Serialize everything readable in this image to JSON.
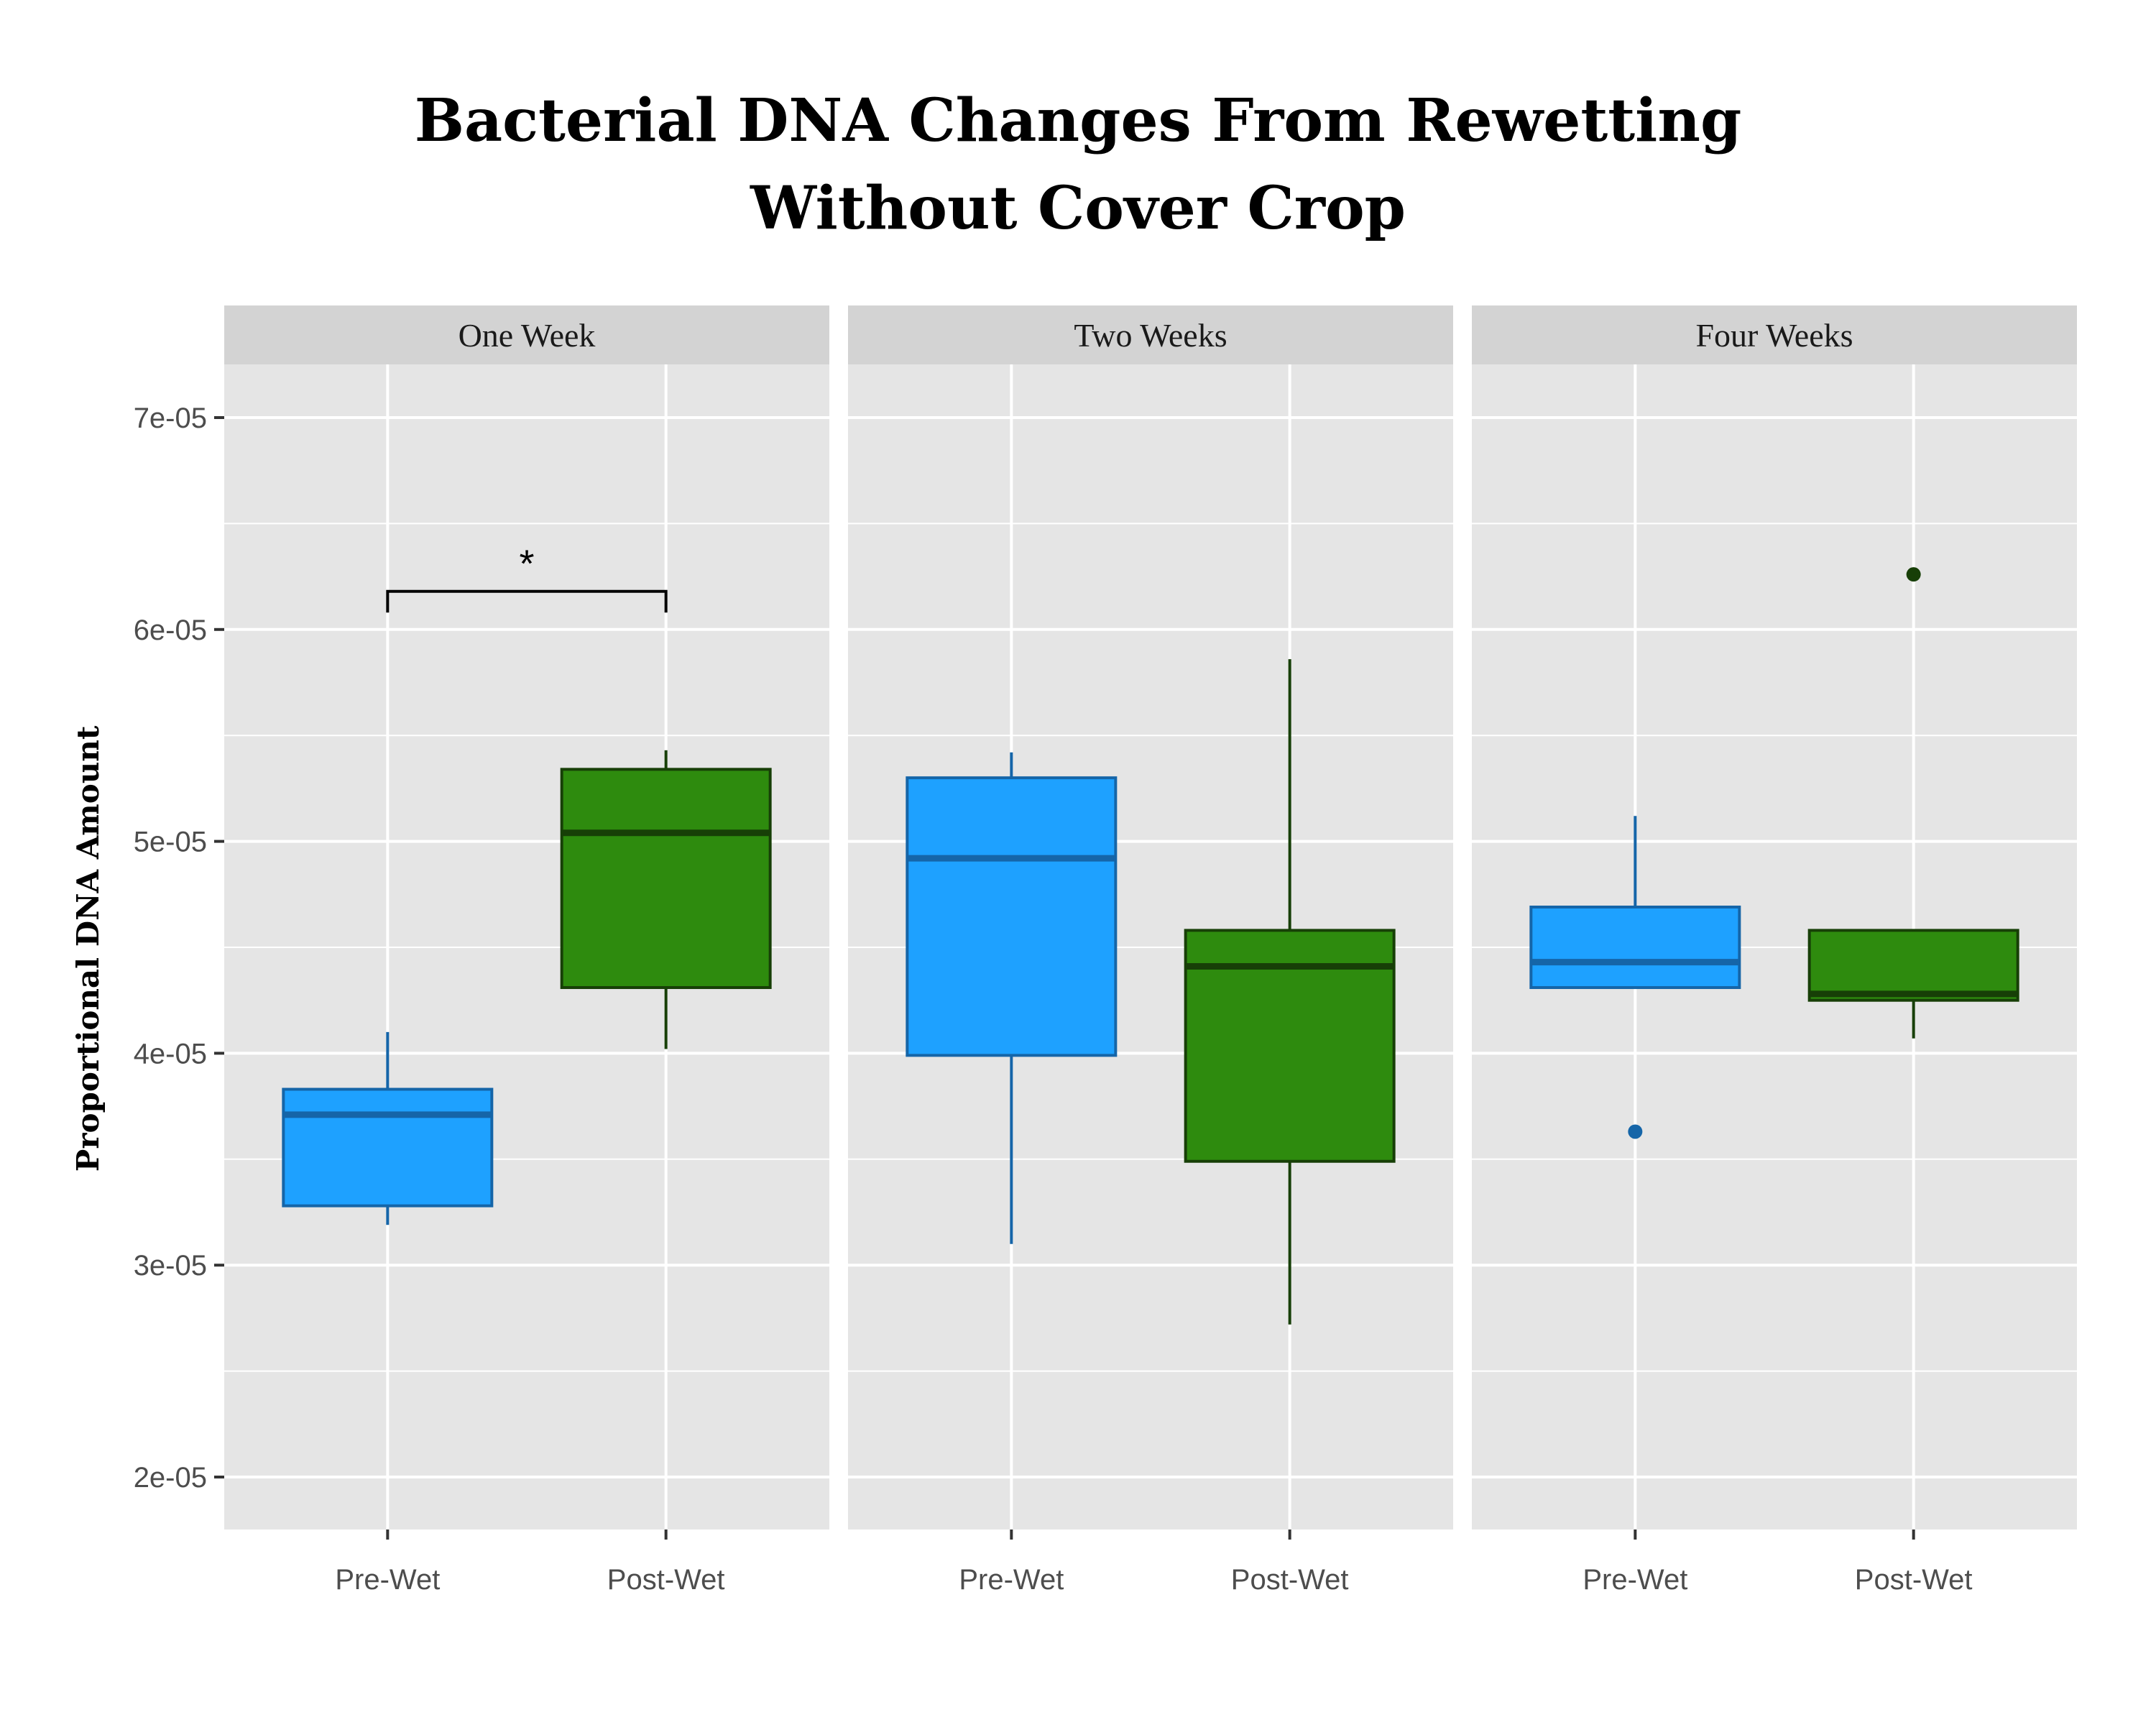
{
  "title": [
    "Bacterial DNA Changes From Rewetting",
    "Without Cover Crop"
  ],
  "chart_data": {
    "type": "boxplot",
    "ylabel": "Proportional DNA Amount",
    "ylim": [
      1.75e-05,
      7.25e-05
    ],
    "y_ticks": [
      {
        "value": 2e-05,
        "label": "2e-05"
      },
      {
        "value": 3e-05,
        "label": "3e-05"
      },
      {
        "value": 4e-05,
        "label": "4e-05"
      },
      {
        "value": 5e-05,
        "label": "5e-05"
      },
      {
        "value": 6e-05,
        "label": "6e-05"
      },
      {
        "value": 7e-05,
        "label": "7e-05"
      }
    ],
    "categories": [
      "Pre-Wet",
      "Post-Wet"
    ],
    "colors": {
      "Pre-Wet": {
        "fill": "#1ea1ff",
        "line": "#1565a8"
      },
      "Post-Wet": {
        "fill": "#2e8b0e",
        "line": "#173f07"
      },
      "panel_bg": "#e5e5e5",
      "strip_bg": "#d3d3d3",
      "grid": "#ffffff"
    },
    "panels": [
      {
        "label": "One Week",
        "boxes": [
          {
            "group": "Pre-Wet",
            "whisker_low": 3.19e-05,
            "q1": 3.28e-05,
            "median": 3.71e-05,
            "q3": 3.83e-05,
            "whisker_high": 4.1e-05,
            "outliers": []
          },
          {
            "group": "Post-Wet",
            "whisker_low": 4.02e-05,
            "q1": 4.31e-05,
            "median": 5.04e-05,
            "q3": 5.34e-05,
            "whisker_high": 5.43e-05,
            "outliers": []
          }
        ],
        "significance": {
          "label": "*",
          "y": 6.18e-05,
          "tick_bottom": 6.08e-05
        }
      },
      {
        "label": "Two Weeks",
        "boxes": [
          {
            "group": "Pre-Wet",
            "whisker_low": 3.1e-05,
            "q1": 3.99e-05,
            "median": 4.92e-05,
            "q3": 5.3e-05,
            "whisker_high": 5.42e-05,
            "outliers": []
          },
          {
            "group": "Post-Wet",
            "whisker_low": 2.72e-05,
            "q1": 3.49e-05,
            "median": 4.41e-05,
            "q3": 4.58e-05,
            "whisker_high": 5.86e-05,
            "outliers": []
          }
        ]
      },
      {
        "label": "Four Weeks",
        "boxes": [
          {
            "group": "Pre-Wet",
            "whisker_low": 4.31e-05,
            "q1": 4.31e-05,
            "median": 4.43e-05,
            "q3": 4.69e-05,
            "whisker_high": 5.12e-05,
            "outliers": [
              3.63e-05
            ]
          },
          {
            "group": "Post-Wet",
            "whisker_low": 4.07e-05,
            "q1": 4.25e-05,
            "median": 4.28e-05,
            "q3": 4.58e-05,
            "whisker_high": 4.58e-05,
            "outliers": [
              6.26e-05
            ]
          }
        ]
      }
    ]
  }
}
